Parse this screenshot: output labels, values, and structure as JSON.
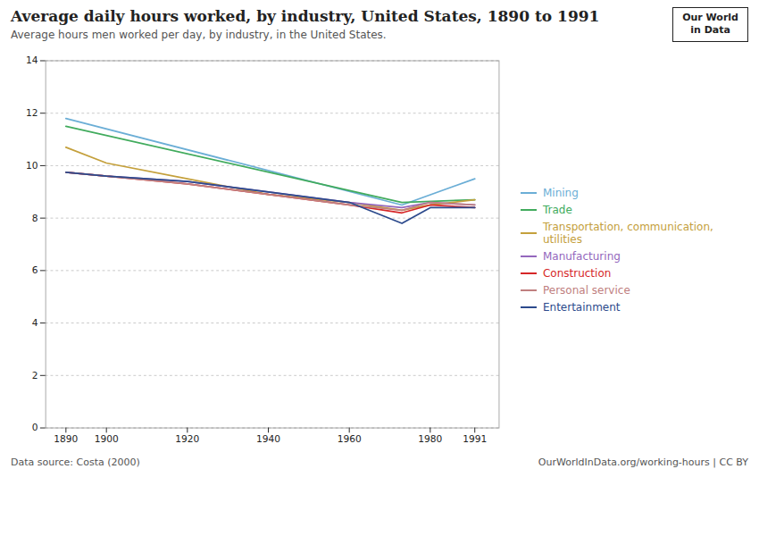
{
  "chart_data": {
    "type": "line",
    "title": "Average daily hours worked, by industry, United States, 1890 to 1991",
    "subtitle": "Average hours men worked per day, by industry, in the United States.",
    "annotations": [
      "Data source: Costa (2000)",
      "OurWorldInData.org/working-hours | CC BY",
      "Our World",
      "in Data"
    ],
    "x": [
      1890,
      1900,
      1920,
      1940,
      1960,
      1973,
      1980,
      1991
    ],
    "series": [
      {
        "name": "Mining",
        "color": "#6baed6",
        "values": [
          11.8,
          null,
          null,
          null,
          null,
          8.5,
          null,
          9.5
        ]
      },
      {
        "name": "Trade",
        "color": "#41ab5d",
        "values": [
          11.5,
          null,
          null,
          null,
          null,
          8.6,
          null,
          8.7
        ]
      },
      {
        "name": "Transportation, communication, utilities",
        "color": "#c4a03c",
        "values": [
          10.7,
          10.1,
          9.5,
          8.9,
          8.6,
          8.3,
          8.5,
          8.7
        ]
      },
      {
        "name": "Manufacturing",
        "color": "#9467bd",
        "values": [
          9.75,
          9.6,
          9.4,
          9.0,
          8.6,
          8.4,
          8.6,
          8.5
        ]
      },
      {
        "name": "Construction",
        "color": "#d62728",
        "values": [
          9.75,
          9.6,
          9.3,
          8.9,
          8.5,
          8.2,
          8.5,
          8.4
        ]
      },
      {
        "name": "Personal service",
        "color": "#c08080",
        "values": [
          9.75,
          9.6,
          9.3,
          8.9,
          8.5,
          8.3,
          8.6,
          8.5
        ]
      },
      {
        "name": "Entertainment",
        "color": "#2c4a8c",
        "values": [
          9.75,
          9.6,
          9.4,
          9.0,
          8.6,
          7.8,
          8.4,
          8.4
        ]
      }
    ],
    "xlim": [
      1885,
      1997
    ],
    "xticks": [
      1890,
      1900,
      1920,
      1940,
      1960,
      1980,
      1991
    ],
    "ylim": [
      0,
      14
    ],
    "yticks": [
      0,
      2,
      4,
      6,
      8,
      10,
      12,
      14
    ],
    "grid": true,
    "legend": "right"
  }
}
